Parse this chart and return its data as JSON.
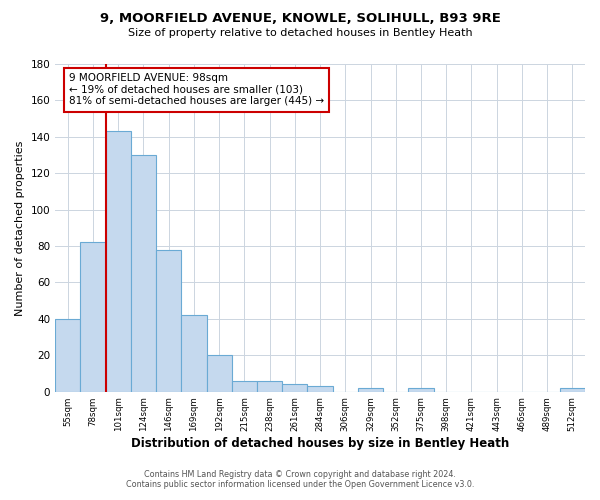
{
  "title": "9, MOORFIELD AVENUE, KNOWLE, SOLIHULL, B93 9RE",
  "subtitle": "Size of property relative to detached houses in Bentley Heath",
  "xlabel": "Distribution of detached houses by size in Bentley Heath",
  "ylabel": "Number of detached properties",
  "bin_labels": [
    "55sqm",
    "78sqm",
    "101sqm",
    "124sqm",
    "146sqm",
    "169sqm",
    "192sqm",
    "215sqm",
    "238sqm",
    "261sqm",
    "284sqm",
    "306sqm",
    "329sqm",
    "352sqm",
    "375sqm",
    "398sqm",
    "421sqm",
    "443sqm",
    "466sqm",
    "489sqm",
    "512sqm"
  ],
  "bar_values": [
    40,
    82,
    143,
    130,
    78,
    42,
    20,
    6,
    6,
    4,
    3,
    0,
    2,
    0,
    2,
    0,
    0,
    0,
    0,
    0,
    2
  ],
  "bar_color": "#c5d9ee",
  "bar_edge_color": "#6aaad4",
  "property_line_color": "#cc0000",
  "annotation_text": "9 MOORFIELD AVENUE: 98sqm\n← 19% of detached houses are smaller (103)\n81% of semi-detached houses are larger (445) →",
  "annotation_box_color": "#ffffff",
  "annotation_box_edge_color": "#cc0000",
  "ylim": [
    0,
    180
  ],
  "yticks": [
    0,
    20,
    40,
    60,
    80,
    100,
    120,
    140,
    160,
    180
  ],
  "footer_line1": "Contains HM Land Registry data © Crown copyright and database right 2024.",
  "footer_line2": "Contains public sector information licensed under the Open Government Licence v3.0.",
  "background_color": "#ffffff",
  "grid_color": "#ccd5e0"
}
